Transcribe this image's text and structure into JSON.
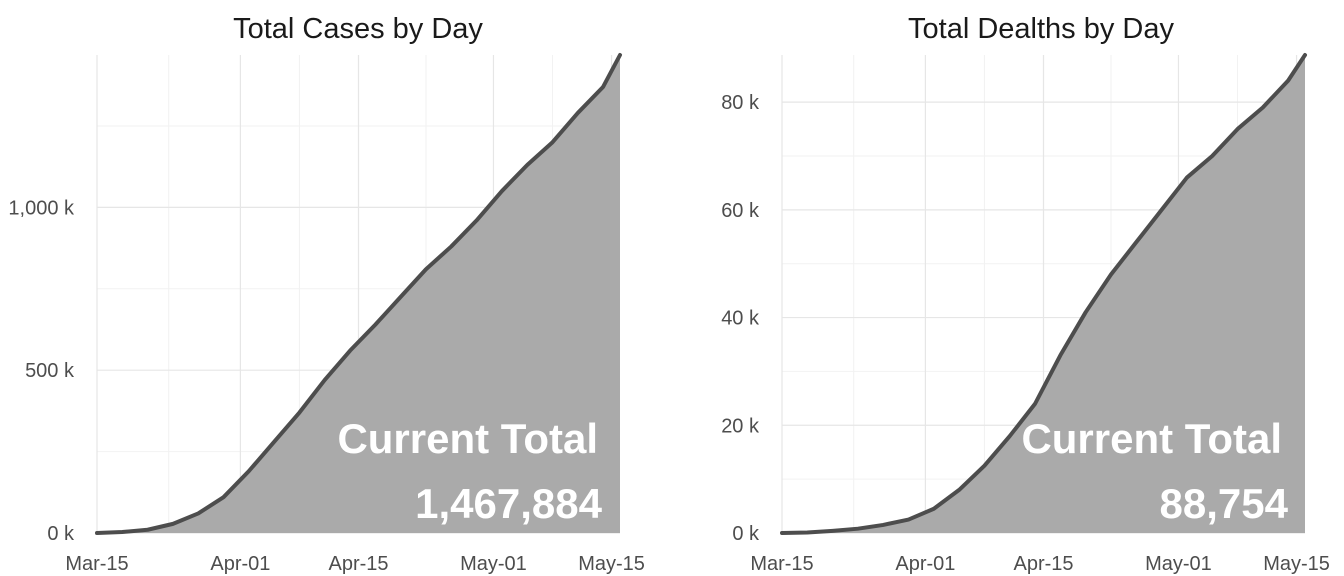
{
  "chart_data": [
    {
      "type": "area",
      "title": "Total Cases by Day",
      "xlabel": "",
      "ylabel": "",
      "x_ticks": [
        "Mar-15",
        "Apr-01",
        "Apr-15",
        "May-01",
        "May-15"
      ],
      "y_ticks": [
        "0 k",
        "500 k",
        "1,000 k"
      ],
      "ylim": [
        0,
        1467884
      ],
      "grid": true,
      "legend": "none",
      "annotation": {
        "label": "Current Total",
        "value": "1,467,884"
      },
      "fill_color": "#aaaaaa",
      "line_color": "#4d4d4d",
      "x": [
        "2020-03-15",
        "2020-03-18",
        "2020-03-21",
        "2020-03-24",
        "2020-03-27",
        "2020-03-30",
        "2020-04-02",
        "2020-04-05",
        "2020-04-08",
        "2020-04-11",
        "2020-04-14",
        "2020-04-17",
        "2020-04-20",
        "2020-04-23",
        "2020-04-26",
        "2020-04-29",
        "2020-05-02",
        "2020-05-05",
        "2020-05-08",
        "2020-05-11",
        "2020-05-14",
        "2020-05-16"
      ],
      "values": [
        0,
        3000,
        10000,
        28000,
        60000,
        110000,
        190000,
        280000,
        370000,
        470000,
        560000,
        640000,
        725000,
        810000,
        880000,
        960000,
        1050000,
        1130000,
        1200000,
        1290000,
        1370000,
        1467884
      ]
    },
    {
      "type": "area",
      "title": "Total Dealths by Day",
      "xlabel": "",
      "ylabel": "",
      "x_ticks": [
        "Mar-15",
        "Apr-01",
        "Apr-15",
        "May-01",
        "May-15"
      ],
      "y_ticks": [
        "0 k",
        "20 k",
        "40 k",
        "60 k",
        "80 k"
      ],
      "ylim": [
        0,
        88754
      ],
      "grid": true,
      "legend": "none",
      "annotation": {
        "label": "Current Total",
        "value": "88,754"
      },
      "fill_color": "#aaaaaa",
      "line_color": "#4d4d4d",
      "x": [
        "2020-03-15",
        "2020-03-18",
        "2020-03-21",
        "2020-03-24",
        "2020-03-27",
        "2020-03-30",
        "2020-04-02",
        "2020-04-05",
        "2020-04-08",
        "2020-04-11",
        "2020-04-14",
        "2020-04-17",
        "2020-04-20",
        "2020-04-23",
        "2020-04-26",
        "2020-04-29",
        "2020-05-02",
        "2020-05-05",
        "2020-05-08",
        "2020-05-11",
        "2020-05-14",
        "2020-05-16"
      ],
      "values": [
        0,
        100,
        400,
        800,
        1500,
        2500,
        4500,
        8000,
        12500,
        18000,
        24000,
        33000,
        41000,
        48000,
        54000,
        60000,
        66000,
        70000,
        75000,
        79000,
        84000,
        88754
      ]
    }
  ]
}
